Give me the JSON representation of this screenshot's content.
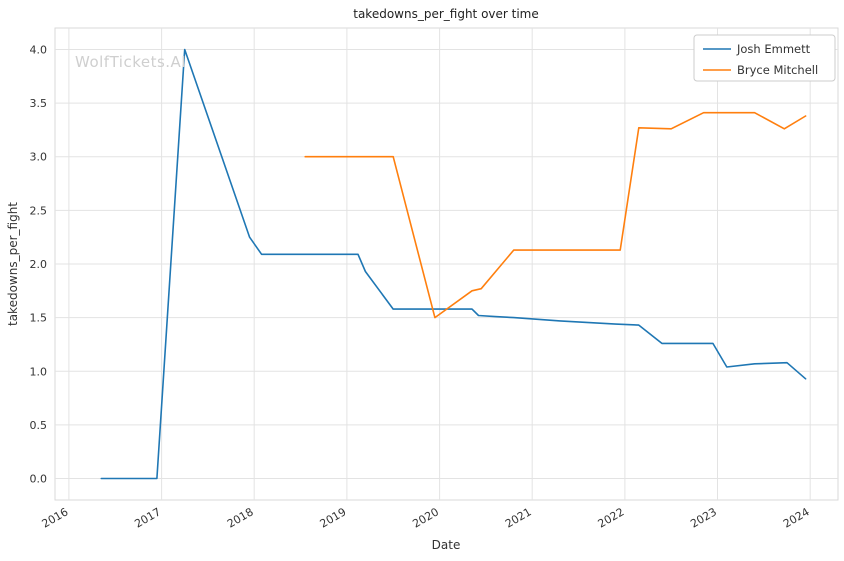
{
  "watermark": "WolfTickets.AI",
  "chart_data": {
    "type": "line",
    "title": "takedowns_per_fight over time",
    "xlabel": "Date",
    "ylabel": "takedowns_per_fight",
    "grid": true,
    "legend_position": "upper right",
    "xlim": [
      2015.85,
      2024.3
    ],
    "ylim": [
      -0.2,
      4.2
    ],
    "xticks": [
      2016,
      2017,
      2018,
      2019,
      2020,
      2021,
      2022,
      2023,
      2024
    ],
    "yticks": [
      0.0,
      0.5,
      1.0,
      1.5,
      2.0,
      2.5,
      3.0,
      3.5,
      4.0
    ],
    "series": [
      {
        "name": "Josh Emmett",
        "color": "#1f77b4",
        "points": [
          [
            2016.35,
            0.0
          ],
          [
            2016.62,
            0.0
          ],
          [
            2016.95,
            0.0
          ],
          [
            2017.25,
            4.0
          ],
          [
            2017.95,
            2.25
          ],
          [
            2018.08,
            2.09
          ],
          [
            2019.12,
            2.09
          ],
          [
            2019.2,
            1.93
          ],
          [
            2019.5,
            1.58
          ],
          [
            2020.1,
            1.58
          ],
          [
            2020.35,
            1.58
          ],
          [
            2020.42,
            1.52
          ],
          [
            2020.6,
            1.51
          ],
          [
            2020.8,
            1.5
          ],
          [
            2021.3,
            1.47
          ],
          [
            2021.9,
            1.44
          ],
          [
            2022.15,
            1.43
          ],
          [
            2022.4,
            1.26
          ],
          [
            2022.65,
            1.26
          ],
          [
            2022.95,
            1.26
          ],
          [
            2023.1,
            1.04
          ],
          [
            2023.4,
            1.07
          ],
          [
            2023.75,
            1.08
          ],
          [
            2023.95,
            0.93
          ]
        ]
      },
      {
        "name": "Bryce Mitchell",
        "color": "#ff7f0e",
        "points": [
          [
            2018.55,
            3.0
          ],
          [
            2018.9,
            3.0
          ],
          [
            2019.2,
            3.0
          ],
          [
            2019.5,
            3.0
          ],
          [
            2019.95,
            1.5
          ],
          [
            2020.35,
            1.75
          ],
          [
            2020.45,
            1.77
          ],
          [
            2020.8,
            2.13
          ],
          [
            2021.3,
            2.13
          ],
          [
            2021.95,
            2.13
          ],
          [
            2022.15,
            3.27
          ],
          [
            2022.5,
            3.26
          ],
          [
            2022.85,
            3.41
          ],
          [
            2023.1,
            3.41
          ],
          [
            2023.4,
            3.41
          ],
          [
            2023.72,
            3.26
          ],
          [
            2023.95,
            3.38
          ]
        ]
      }
    ]
  }
}
